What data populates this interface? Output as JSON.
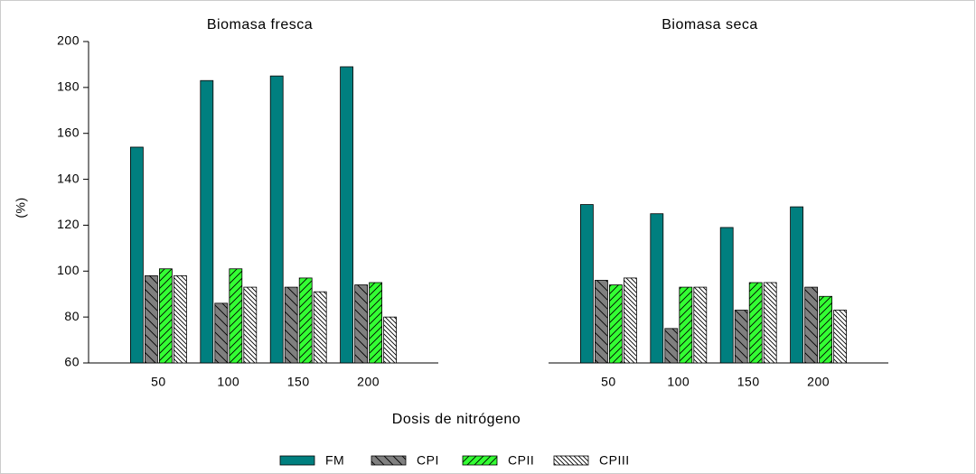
{
  "chart_data": [
    {
      "type": "bar",
      "title": "Biomasa fresca",
      "ylabel": "(%)",
      "xlabel": "Dosis de nitrógeno",
      "categories": [
        "50",
        "100",
        "150",
        "200"
      ],
      "series": [
        {
          "name": "FM",
          "color": "#007f7f",
          "values": [
            154,
            183,
            185,
            189
          ]
        },
        {
          "name": "CPI",
          "color": "#808080",
          "values": [
            98,
            86,
            93,
            94
          ]
        },
        {
          "name": "CPII",
          "color": "#33ff33",
          "values": [
            101,
            101,
            97,
            95
          ]
        },
        {
          "name": "CPIII",
          "color": "#ffffff",
          "values": [
            98,
            93,
            91,
            80
          ]
        }
      ],
      "ylim": [
        60,
        200
      ],
      "yticks": [
        60,
        80,
        100,
        120,
        140,
        160,
        180,
        200
      ]
    },
    {
      "type": "bar",
      "title": "Biomasa seca",
      "categories": [
        "50",
        "100",
        "150",
        "200"
      ],
      "series": [
        {
          "color": "#007f7f",
          "values": [
            129,
            125,
            119,
            128
          ]
        },
        {
          "color": "#808080",
          "values": [
            96,
            75,
            83,
            93
          ]
        },
        {
          "color": "#33ff33",
          "values": [
            94,
            93,
            95,
            89
          ]
        },
        {
          "color": "#ffffff",
          "values": [
            97,
            93,
            95,
            83
          ]
        }
      ],
      "ylim": [
        60,
        200
      ]
    }
  ]
}
